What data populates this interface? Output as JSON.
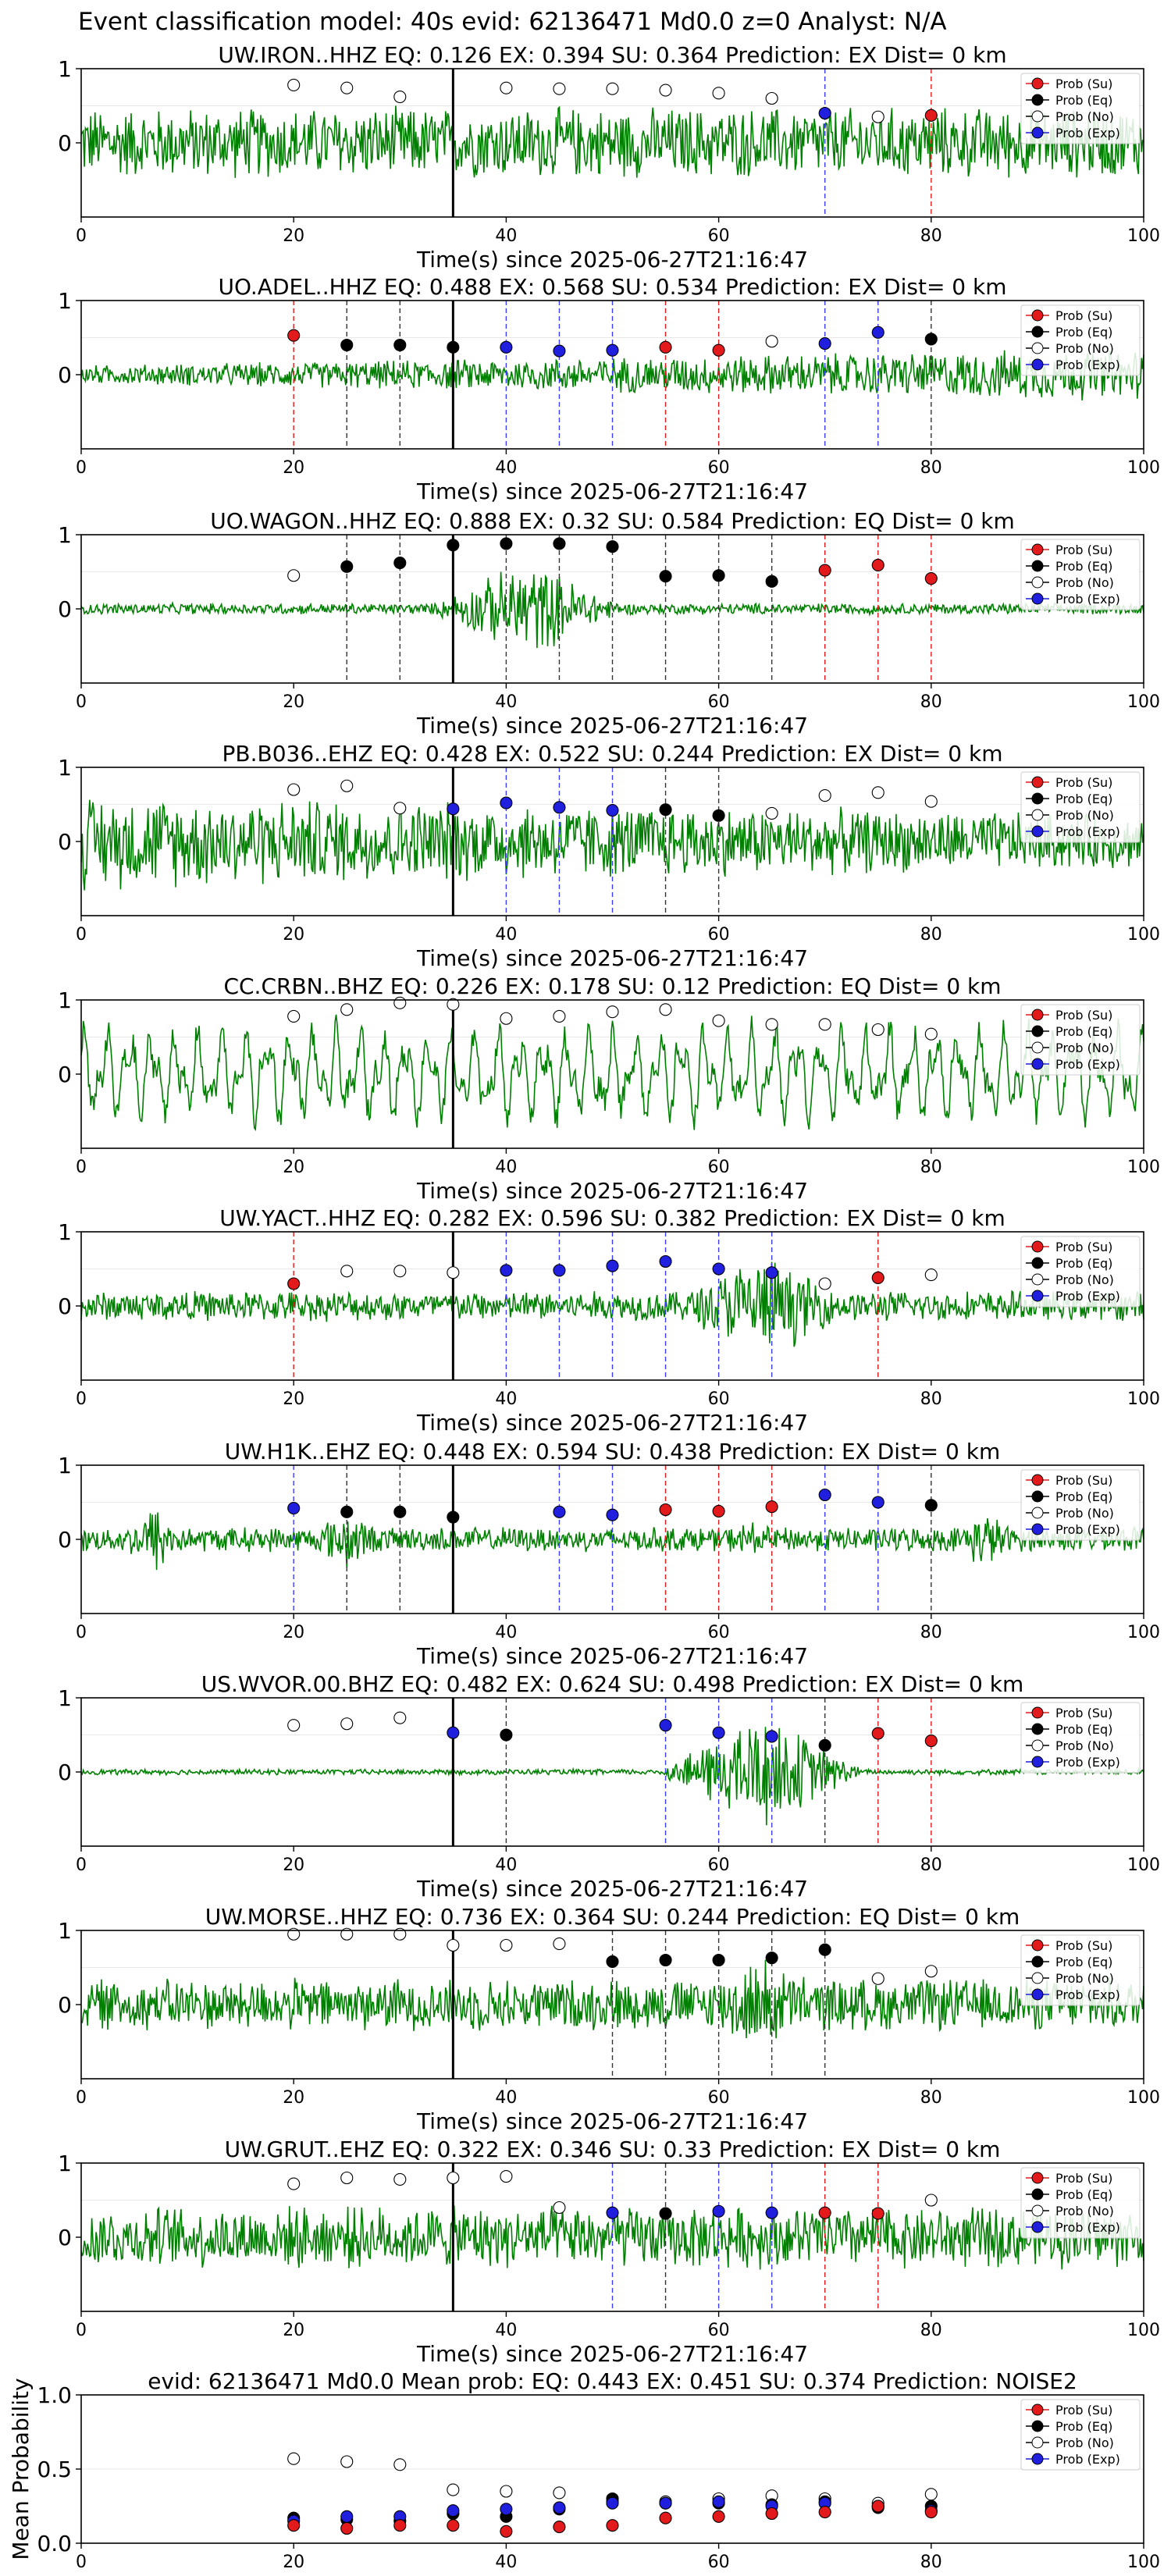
{
  "figure_title": "Event classification model: 40s evid: 62136471 Md0.0 z=0 Analyst: N/A",
  "legend_labels": [
    "Prob (Su)",
    "Prob (Eq)",
    "Prob (No)",
    "Prob (Exp)"
  ],
  "colors": {
    "waveform": "#008000",
    "su": "#e31a1c",
    "eq": "#000000",
    "no": "#ffffff",
    "exp": "#1f1fdd",
    "vline_su": "#e31a1c",
    "vline_eq": "#333333",
    "vline_exp": "#3b3bff",
    "origin_line": "#000000"
  },
  "chart_data": [
    {
      "type": "scatter",
      "title": "UW.IRON..HHZ   EQ: 0.126  EX: 0.394  SU: 0.364   Prediction: EX    Dist= 0 km",
      "xlabel": "Time(s) since 2025-06-27T21:16:47",
      "xlim": [
        0,
        100
      ],
      "ylim": [
        -1,
        1
      ],
      "xticks": [
        "0",
        "20",
        "40",
        "60",
        "80",
        "100"
      ],
      "yticks": [
        "1",
        "0"
      ],
      "origin_line_x": 35,
      "waveform": {
        "amplitude": 0.52,
        "profile": "uniform"
      },
      "windows": [
        {
          "t": 20,
          "class": "No",
          "prob": 0.78
        },
        {
          "t": 25,
          "class": "No",
          "prob": 0.74
        },
        {
          "t": 30,
          "class": "No",
          "prob": 0.62
        },
        {
          "t": 40,
          "class": "No",
          "prob": 0.74
        },
        {
          "t": 45,
          "class": "No",
          "prob": 0.73
        },
        {
          "t": 50,
          "class": "No",
          "prob": 0.73
        },
        {
          "t": 55,
          "class": "No",
          "prob": 0.71
        },
        {
          "t": 60,
          "class": "No",
          "prob": 0.67
        },
        {
          "t": 65,
          "class": "No",
          "prob": 0.6
        },
        {
          "t": 70,
          "class": "Exp",
          "prob": 0.4
        },
        {
          "t": 75,
          "class": "No",
          "prob": 0.35
        },
        {
          "t": 80,
          "class": "Su",
          "prob": 0.37
        }
      ]
    },
    {
      "type": "scatter",
      "title": "UO.ADEL..HHZ   EQ: 0.488  EX: 0.568  SU: 0.534   Prediction: EX    Dist= 0 km",
      "xlabel": "Time(s) since 2025-06-27T21:16:47",
      "xlim": [
        0,
        100
      ],
      "ylim": [
        -1,
        1
      ],
      "xticks": [
        "0",
        "20",
        "40",
        "60",
        "80",
        "100"
      ],
      "yticks": [
        "1",
        "0"
      ],
      "origin_line_x": 35,
      "waveform": {
        "amplitude": 0.25,
        "profile": "grow"
      },
      "windows": [
        {
          "t": 20,
          "class": "Su",
          "prob": 0.53
        },
        {
          "t": 25,
          "class": "Eq",
          "prob": 0.4
        },
        {
          "t": 30,
          "class": "Eq",
          "prob": 0.4
        },
        {
          "t": 35,
          "class": "Eq",
          "prob": 0.37
        },
        {
          "t": 40,
          "class": "Exp",
          "prob": 0.37
        },
        {
          "t": 45,
          "class": "Exp",
          "prob": 0.32
        },
        {
          "t": 50,
          "class": "Exp",
          "prob": 0.33
        },
        {
          "t": 55,
          "class": "Su",
          "prob": 0.37
        },
        {
          "t": 60,
          "class": "Su",
          "prob": 0.33
        },
        {
          "t": 65,
          "class": "No",
          "prob": 0.45
        },
        {
          "t": 70,
          "class": "Exp",
          "prob": 0.42
        },
        {
          "t": 75,
          "class": "Exp",
          "prob": 0.57
        },
        {
          "t": 80,
          "class": "Eq",
          "prob": 0.48
        }
      ]
    },
    {
      "type": "scatter",
      "title": "UO.WAGON..HHZ   EQ: 0.888  EX: 0.32  SU: 0.584   Prediction: EQ    Dist= 0 km",
      "xlabel": "Time(s) since 2025-06-27T21:16:47",
      "xlim": [
        0,
        100
      ],
      "ylim": [
        -1,
        1
      ],
      "xticks": [
        "0",
        "20",
        "40",
        "60",
        "80",
        "100"
      ],
      "yticks": [
        "1",
        "0"
      ],
      "origin_line_x": 35,
      "waveform": {
        "amplitude": 0.08,
        "profile": "burst",
        "burst_t": 42,
        "burst_amp": 0.72
      },
      "windows": [
        {
          "t": 20,
          "class": "No",
          "prob": 0.45
        },
        {
          "t": 25,
          "class": "Eq",
          "prob": 0.57
        },
        {
          "t": 30,
          "class": "Eq",
          "prob": 0.62
        },
        {
          "t": 35,
          "class": "Eq",
          "prob": 0.86
        },
        {
          "t": 40,
          "class": "Eq",
          "prob": 0.88
        },
        {
          "t": 45,
          "class": "Eq",
          "prob": 0.88
        },
        {
          "t": 50,
          "class": "Eq",
          "prob": 0.84
        },
        {
          "t": 55,
          "class": "Eq",
          "prob": 0.44
        },
        {
          "t": 60,
          "class": "Eq",
          "prob": 0.45
        },
        {
          "t": 65,
          "class": "Eq",
          "prob": 0.37
        },
        {
          "t": 70,
          "class": "Su",
          "prob": 0.52
        },
        {
          "t": 75,
          "class": "Su",
          "prob": 0.59
        },
        {
          "t": 80,
          "class": "Su",
          "prob": 0.41
        }
      ]
    },
    {
      "type": "scatter",
      "title": "PB.B036..EHZ   EQ: 0.428  EX: 0.522  SU: 0.244   Prediction: EX    Dist= 0 km",
      "xlabel": "Time(s) since 2025-06-27T21:16:47",
      "xlim": [
        0,
        100
      ],
      "ylim": [
        -1,
        1
      ],
      "xticks": [
        "0",
        "20",
        "40",
        "60",
        "80",
        "100"
      ],
      "yticks": [
        "1",
        "0"
      ],
      "origin_line_x": 35,
      "waveform": {
        "amplitude": 0.6,
        "profile": "fade"
      },
      "windows": [
        {
          "t": 20,
          "class": "No",
          "prob": 0.7
        },
        {
          "t": 25,
          "class": "No",
          "prob": 0.75
        },
        {
          "t": 30,
          "class": "No",
          "prob": 0.45
        },
        {
          "t": 35,
          "class": "Exp",
          "prob": 0.44
        },
        {
          "t": 40,
          "class": "Exp",
          "prob": 0.52
        },
        {
          "t": 45,
          "class": "Exp",
          "prob": 0.46
        },
        {
          "t": 50,
          "class": "Exp",
          "prob": 0.42
        },
        {
          "t": 55,
          "class": "Eq",
          "prob": 0.43
        },
        {
          "t": 60,
          "class": "Eq",
          "prob": 0.35
        },
        {
          "t": 65,
          "class": "No",
          "prob": 0.38
        },
        {
          "t": 70,
          "class": "No",
          "prob": 0.62
        },
        {
          "t": 75,
          "class": "No",
          "prob": 0.66
        },
        {
          "t": 80,
          "class": "No",
          "prob": 0.54
        }
      ]
    },
    {
      "type": "scatter",
      "title": "CC.CRBN..BHZ   EQ: 0.226  EX: 0.178  SU: 0.12   Prediction: EQ    Dist= 0 km",
      "xlabel": "Time(s) since 2025-06-27T21:16:47",
      "xlim": [
        0,
        100
      ],
      "ylim": [
        -1,
        1
      ],
      "xticks": [
        "0",
        "20",
        "40",
        "60",
        "80",
        "100"
      ],
      "yticks": [
        "1",
        "0"
      ],
      "origin_line_x": 35,
      "waveform": {
        "amplitude": 0.7,
        "profile": "smooth"
      },
      "windows": [
        {
          "t": 20,
          "class": "No",
          "prob": 0.78
        },
        {
          "t": 25,
          "class": "No",
          "prob": 0.87
        },
        {
          "t": 30,
          "class": "No",
          "prob": 0.96
        },
        {
          "t": 35,
          "class": "No",
          "prob": 0.94
        },
        {
          "t": 40,
          "class": "No",
          "prob": 0.75
        },
        {
          "t": 45,
          "class": "No",
          "prob": 0.78
        },
        {
          "t": 50,
          "class": "No",
          "prob": 0.84
        },
        {
          "t": 55,
          "class": "No",
          "prob": 0.87
        },
        {
          "t": 60,
          "class": "No",
          "prob": 0.72
        },
        {
          "t": 65,
          "class": "No",
          "prob": 0.67
        },
        {
          "t": 70,
          "class": "No",
          "prob": 0.67
        },
        {
          "t": 75,
          "class": "No",
          "prob": 0.6
        },
        {
          "t": 80,
          "class": "No",
          "prob": 0.54
        }
      ]
    },
    {
      "type": "scatter",
      "title": "UW.YACT..HHZ   EQ: 0.282  EX: 0.596  SU: 0.382   Prediction: EX    Dist= 0 km",
      "xlabel": "Time(s) since 2025-06-27T21:16:47",
      "xlim": [
        0,
        100
      ],
      "ylim": [
        -1,
        1
      ],
      "xticks": [
        "0",
        "20",
        "40",
        "60",
        "80",
        "100"
      ],
      "yticks": [
        "1",
        "0"
      ],
      "origin_line_x": 35,
      "waveform": {
        "amplitude": 0.22,
        "profile": "burst",
        "burst_t": 64,
        "burst_amp": 0.8
      },
      "windows": [
        {
          "t": 20,
          "class": "Su",
          "prob": 0.3
        },
        {
          "t": 25,
          "class": "No",
          "prob": 0.47
        },
        {
          "t": 30,
          "class": "No",
          "prob": 0.47
        },
        {
          "t": 35,
          "class": "No",
          "prob": 0.45
        },
        {
          "t": 40,
          "class": "Exp",
          "prob": 0.48
        },
        {
          "t": 45,
          "class": "Exp",
          "prob": 0.48
        },
        {
          "t": 50,
          "class": "Exp",
          "prob": 0.54
        },
        {
          "t": 55,
          "class": "Exp",
          "prob": 0.6
        },
        {
          "t": 60,
          "class": "Exp",
          "prob": 0.5
        },
        {
          "t": 65,
          "class": "Exp",
          "prob": 0.45
        },
        {
          "t": 70,
          "class": "No",
          "prob": 0.3
        },
        {
          "t": 75,
          "class": "Su",
          "prob": 0.38
        },
        {
          "t": 80,
          "class": "No",
          "prob": 0.42
        }
      ]
    },
    {
      "type": "scatter",
      "title": "UW.H1K..EHZ   EQ: 0.448  EX: 0.594  SU: 0.438   Prediction: EX    Dist= 0 km",
      "xlabel": "Time(s) since 2025-06-27T21:16:47",
      "xlim": [
        0,
        100
      ],
      "ylim": [
        -1,
        1
      ],
      "xticks": [
        "0",
        "20",
        "40",
        "60",
        "80",
        "100"
      ],
      "yticks": [
        "1",
        "0"
      ],
      "origin_line_x": 35,
      "waveform": {
        "amplitude": 0.18,
        "profile": "bursts"
      },
      "windows": [
        {
          "t": 20,
          "class": "Exp",
          "prob": 0.42
        },
        {
          "t": 25,
          "class": "Eq",
          "prob": 0.37
        },
        {
          "t": 30,
          "class": "Eq",
          "prob": 0.37
        },
        {
          "t": 35,
          "class": "Eq",
          "prob": 0.3
        },
        {
          "t": 45,
          "class": "Exp",
          "prob": 0.37
        },
        {
          "t": 50,
          "class": "Exp",
          "prob": 0.33
        },
        {
          "t": 55,
          "class": "Su",
          "prob": 0.4
        },
        {
          "t": 60,
          "class": "Su",
          "prob": 0.38
        },
        {
          "t": 65,
          "class": "Su",
          "prob": 0.44
        },
        {
          "t": 70,
          "class": "Exp",
          "prob": 0.6
        },
        {
          "t": 75,
          "class": "Exp",
          "prob": 0.5
        },
        {
          "t": 80,
          "class": "Eq",
          "prob": 0.46
        }
      ]
    },
    {
      "type": "scatter",
      "title": "US.WVOR.00.BHZ   EQ: 0.482  EX: 0.624  SU: 0.498   Prediction: EX    Dist= 0 km",
      "xlabel": "Time(s) since 2025-06-27T21:16:47",
      "xlim": [
        0,
        100
      ],
      "ylim": [
        -1,
        1
      ],
      "xticks": [
        "0",
        "20",
        "40",
        "60",
        "80",
        "100"
      ],
      "yticks": [
        "1",
        "0"
      ],
      "origin_line_x": 35,
      "waveform": {
        "amplitude": 0.04,
        "profile": "burst",
        "burst_t": 64,
        "burst_amp": 0.9
      },
      "windows": [
        {
          "t": 20,
          "class": "No",
          "prob": 0.63
        },
        {
          "t": 25,
          "class": "No",
          "prob": 0.65
        },
        {
          "t": 30,
          "class": "No",
          "prob": 0.73
        },
        {
          "t": 35,
          "class": "Exp",
          "prob": 0.53
        },
        {
          "t": 40,
          "class": "Eq",
          "prob": 0.5
        },
        {
          "t": 55,
          "class": "Exp",
          "prob": 0.63
        },
        {
          "t": 60,
          "class": "Exp",
          "prob": 0.53
        },
        {
          "t": 65,
          "class": "Exp",
          "prob": 0.48
        },
        {
          "t": 70,
          "class": "Eq",
          "prob": 0.36
        },
        {
          "t": 75,
          "class": "Su",
          "prob": 0.52
        },
        {
          "t": 80,
          "class": "Su",
          "prob": 0.42
        }
      ]
    },
    {
      "type": "scatter",
      "title": "UW.MORSE..HHZ   EQ: 0.736  EX: 0.364  SU: 0.244   Prediction: EQ    Dist= 0 km",
      "xlabel": "Time(s) since 2025-06-27T21:16:47",
      "xlim": [
        0,
        100
      ],
      "ylim": [
        -1,
        1
      ],
      "xticks": [
        "0",
        "20",
        "40",
        "60",
        "80",
        "100"
      ],
      "yticks": [
        "1",
        "0"
      ],
      "origin_line_x": 35,
      "waveform": {
        "amplitude": 0.38,
        "profile": "burst",
        "burst_t": 64,
        "burst_amp": 0.7
      },
      "windows": [
        {
          "t": 20,
          "class": "No",
          "prob": 0.95
        },
        {
          "t": 25,
          "class": "No",
          "prob": 0.95
        },
        {
          "t": 30,
          "class": "No",
          "prob": 0.95
        },
        {
          "t": 35,
          "class": "No",
          "prob": 0.8
        },
        {
          "t": 40,
          "class": "No",
          "prob": 0.8
        },
        {
          "t": 45,
          "class": "No",
          "prob": 0.82
        },
        {
          "t": 50,
          "class": "Eq",
          "prob": 0.58
        },
        {
          "t": 55,
          "class": "Eq",
          "prob": 0.6
        },
        {
          "t": 60,
          "class": "Eq",
          "prob": 0.6
        },
        {
          "t": 65,
          "class": "Eq",
          "prob": 0.63
        },
        {
          "t": 70,
          "class": "Eq",
          "prob": 0.74
        },
        {
          "t": 75,
          "class": "No",
          "prob": 0.35
        },
        {
          "t": 80,
          "class": "No",
          "prob": 0.45
        }
      ]
    },
    {
      "type": "scatter",
      "title": "UW.GRUT..EHZ   EQ: 0.322  EX: 0.346  SU: 0.33   Prediction: EX    Dist= 0 km",
      "xlabel": "Time(s) since 2025-06-27T21:16:47",
      "xlim": [
        0,
        100
      ],
      "ylim": [
        -1,
        1
      ],
      "xticks": [
        "0",
        "20",
        "40",
        "60",
        "80",
        "100"
      ],
      "yticks": [
        "1",
        "0"
      ],
      "origin_line_x": 35,
      "waveform": {
        "amplitude": 0.45,
        "profile": "uniform"
      },
      "windows": [
        {
          "t": 20,
          "class": "No",
          "prob": 0.72
        },
        {
          "t": 25,
          "class": "No",
          "prob": 0.8
        },
        {
          "t": 30,
          "class": "No",
          "prob": 0.78
        },
        {
          "t": 35,
          "class": "No",
          "prob": 0.8
        },
        {
          "t": 40,
          "class": "No",
          "prob": 0.82
        },
        {
          "t": 45,
          "class": "No",
          "prob": 0.4
        },
        {
          "t": 50,
          "class": "Exp",
          "prob": 0.33
        },
        {
          "t": 55,
          "class": "Eq",
          "prob": 0.32
        },
        {
          "t": 60,
          "class": "Exp",
          "prob": 0.35
        },
        {
          "t": 65,
          "class": "Exp",
          "prob": 0.33
        },
        {
          "t": 70,
          "class": "Su",
          "prob": 0.33
        },
        {
          "t": 75,
          "class": "Su",
          "prob": 0.32
        },
        {
          "t": 80,
          "class": "No",
          "prob": 0.5
        }
      ]
    },
    {
      "type": "scatter",
      "title": "evid: 62136471  Md0.0   Mean prob:   EQ: 0.443  EX: 0.451  SU: 0.374   Prediction: NOISE2",
      "xlabel": "",
      "ylabel": "Mean Probability",
      "xlim": [
        0,
        100
      ],
      "ylim": [
        0,
        1
      ],
      "xticks": [
        "0",
        "20",
        "40",
        "60",
        "80",
        "100"
      ],
      "yticks": [
        "0.0",
        "0.5",
        "1.0"
      ],
      "x": [
        20,
        25,
        30,
        35,
        40,
        45,
        50,
        55,
        60,
        65,
        70,
        75,
        80
      ],
      "series": [
        {
          "name": "Prob (Su)",
          "values": [
            0.12,
            0.1,
            0.12,
            0.12,
            0.08,
            0.11,
            0.12,
            0.17,
            0.18,
            0.2,
            0.21,
            0.25,
            0.21
          ]
        },
        {
          "name": "Prob (Eq)",
          "values": [
            0.17,
            0.16,
            0.15,
            0.2,
            0.18,
            0.23,
            0.3,
            0.27,
            0.27,
            0.26,
            0.28,
            0.24,
            0.25
          ]
        },
        {
          "name": "Prob (No)",
          "values": [
            0.57,
            0.55,
            0.53,
            0.36,
            0.35,
            0.34,
            0.28,
            0.28,
            0.3,
            0.32,
            0.3,
            0.27,
            0.33
          ]
        },
        {
          "name": "Prob (Exp)",
          "values": [
            0.15,
            0.18,
            0.18,
            0.22,
            0.23,
            0.24,
            0.27,
            0.27,
            0.28,
            0.25,
            0.27,
            0.25,
            0.22
          ]
        }
      ]
    }
  ]
}
